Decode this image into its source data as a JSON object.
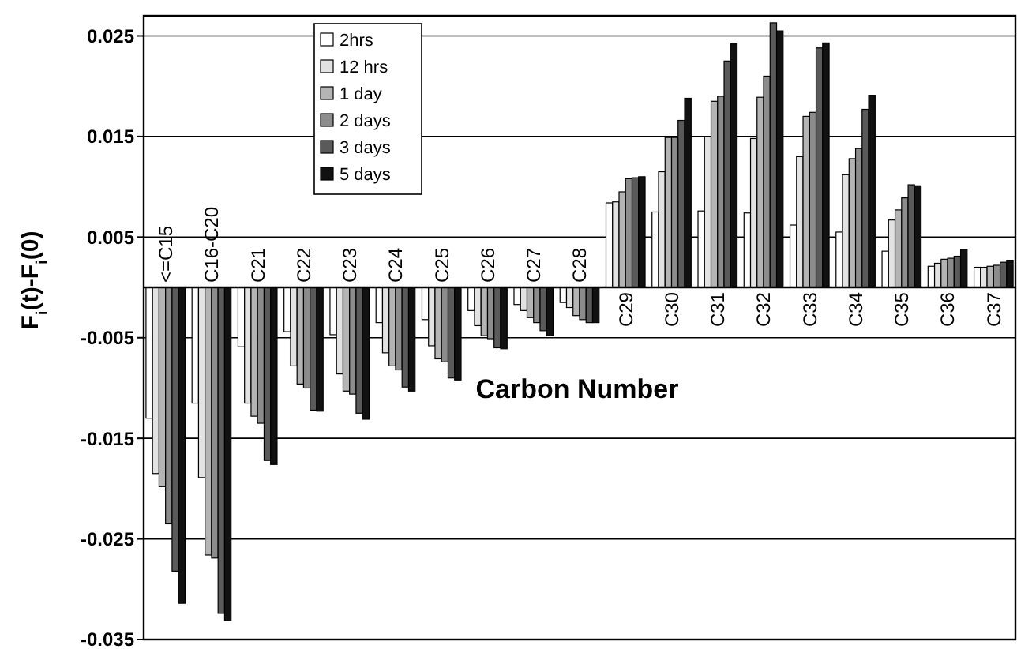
{
  "chart_data": {
    "type": "bar",
    "xlabel": "Carbon Number",
    "ylabel": "F$_{i}$(t)-F$_{i}$(0)",
    "categories": [
      "<=C15",
      "C16-C20",
      "C21",
      "C22",
      "C23",
      "C24",
      "C25",
      "C26",
      "C27",
      "C28",
      "C29",
      "C30",
      "C31",
      "C32",
      "C33",
      "C34",
      "C35",
      "C36",
      "C37"
    ],
    "ylim": [
      -0.035,
      0.027
    ],
    "yticks": [
      -0.035,
      -0.025,
      -0.015,
      -0.005,
      0.005,
      0.015,
      0.025
    ],
    "grid": "y",
    "legend": "top left",
    "series": [
      {
        "name": "2hrs",
        "color": "#ffffff",
        "values": [
          -0.013,
          -0.0115,
          -0.0059,
          -0.0044,
          -0.0047,
          -0.0035,
          -0.0032,
          -0.0023,
          -0.0017,
          -0.0015,
          0.0084,
          0.0075,
          0.0076,
          0.0074,
          0.0062,
          0.0055,
          0.0036,
          0.0021,
          0.002
        ]
      },
      {
        "name": "12 hrs",
        "color": "#e2e2e2",
        "values": [
          -0.0185,
          -0.0189,
          -0.0115,
          -0.0078,
          -0.0086,
          -0.0065,
          -0.0058,
          -0.0038,
          -0.0023,
          -0.002,
          0.0085,
          0.0115,
          0.015,
          0.0148,
          0.013,
          0.0112,
          0.0067,
          0.0024,
          0.002
        ]
      },
      {
        "name": "1 day",
        "color": "#b4b4b4",
        "values": [
          -0.0198,
          -0.0266,
          -0.0128,
          -0.0096,
          -0.0103,
          -0.0078,
          -0.0071,
          -0.0048,
          -0.003,
          -0.0028,
          0.0095,
          0.0149,
          0.0185,
          0.0189,
          0.017,
          0.0128,
          0.0077,
          0.0028,
          0.0021
        ]
      },
      {
        "name": "2 days",
        "color": "#8c8c8c",
        "values": [
          -0.0235,
          -0.0269,
          -0.0135,
          -0.01,
          -0.0106,
          -0.0082,
          -0.0074,
          -0.0051,
          -0.0035,
          -0.0032,
          0.0108,
          0.0149,
          0.019,
          0.021,
          0.0174,
          0.0138,
          0.0089,
          0.0029,
          0.0022
        ]
      },
      {
        "name": "3 days",
        "color": "#5a5a5a",
        "values": [
          -0.0282,
          -0.0324,
          -0.0172,
          -0.0122,
          -0.0125,
          -0.0099,
          -0.009,
          -0.006,
          -0.0043,
          -0.0035,
          0.0109,
          0.0166,
          0.0225,
          0.0263,
          0.0238,
          0.0177,
          0.0102,
          0.0031,
          0.0025
        ]
      },
      {
        "name": "5 days",
        "color": "#111111",
        "values": [
          -0.0314,
          -0.0331,
          -0.0176,
          -0.0123,
          -0.0131,
          -0.0103,
          -0.0092,
          -0.0061,
          -0.0048,
          -0.0035,
          0.011,
          0.0188,
          0.0242,
          0.0255,
          0.0243,
          0.0191,
          0.0101,
          0.0038,
          0.0027
        ]
      }
    ]
  }
}
